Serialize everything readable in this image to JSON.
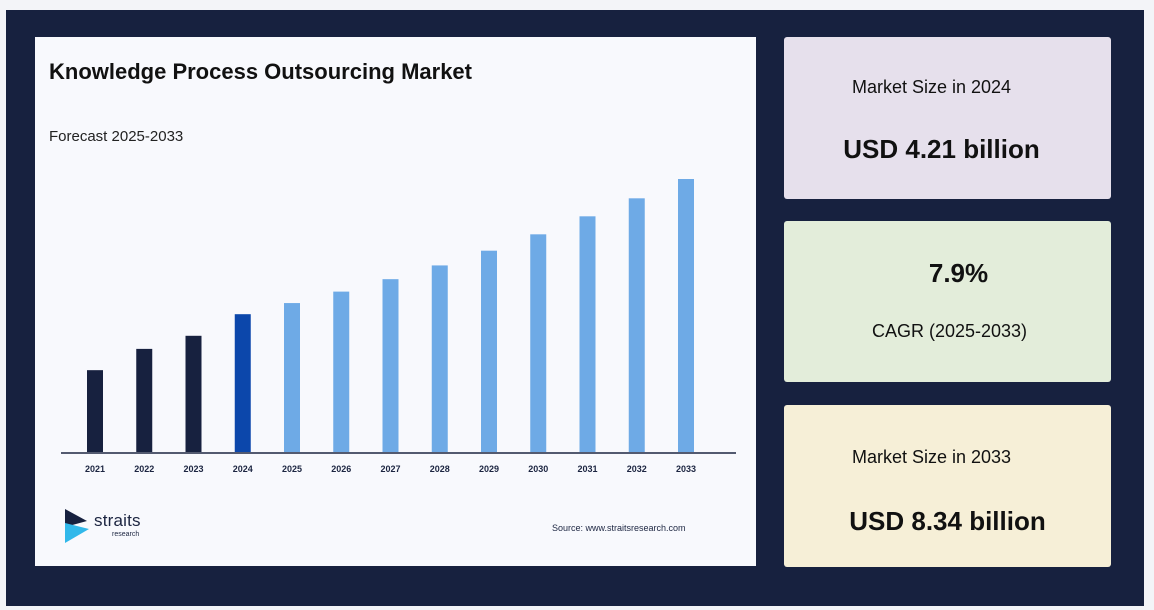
{
  "chart": {
    "title": "Knowledge Process Outsourcing Market",
    "subtitle": "Forecast 2025-2033",
    "logo_word": "straits",
    "logo_sub": "research",
    "source": "Source: www.straitsresearch.com"
  },
  "cards": [
    {
      "label": "Market Size in 2024",
      "value": "USD 4.21 billion"
    },
    {
      "value": "7.9%",
      "label": "CAGR (2025-2033)"
    },
    {
      "label": "Market Size in 2033",
      "value": "USD 8.34 billion"
    }
  ],
  "colors": {
    "historical": "#17213f",
    "base_year": "#0c47ab",
    "forecast": "#6eaae6",
    "background": "#17213f"
  },
  "chart_data": {
    "type": "bar",
    "title": "Knowledge Process Outsourcing Market",
    "subtitle": "Forecast 2025-2033",
    "categories": [
      "2021",
      "2022",
      "2023",
      "2024",
      "2025",
      "2026",
      "2027",
      "2028",
      "2029",
      "2030",
      "2031",
      "2032",
      "2033"
    ],
    "values": [
      2.5,
      3.15,
      3.55,
      4.21,
      4.55,
      4.9,
      5.28,
      5.7,
      6.15,
      6.65,
      7.2,
      7.75,
      8.34
    ],
    "bar_types": [
      "historical",
      "historical",
      "historical",
      "base",
      "forecast",
      "forecast",
      "forecast",
      "forecast",
      "forecast",
      "forecast",
      "forecast",
      "forecast",
      "forecast"
    ],
    "ylim": [
      0,
      8.34
    ],
    "grid": false
  }
}
